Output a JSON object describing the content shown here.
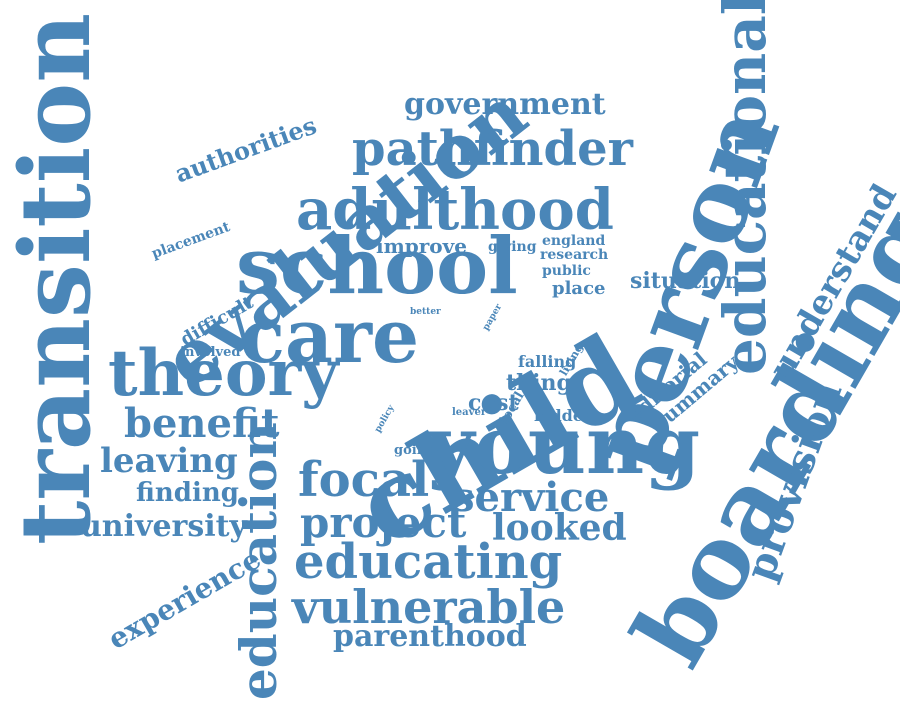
{
  "color": "#4a86b8",
  "words": [
    {
      "text": "transition",
      "rot": -90
    },
    {
      "text": "evaluation",
      "rot": -38
    },
    {
      "text": "child",
      "rot": -30
    },
    {
      "text": "person",
      "rot": -70
    },
    {
      "text": "boarding",
      "rot": -60
    },
    {
      "text": "educational",
      "rot": -90
    },
    {
      "text": "young",
      "rot": 0
    },
    {
      "text": "school",
      "rot": 0
    },
    {
      "text": "care",
      "rot": 0
    },
    {
      "text": "theory",
      "rot": 0
    },
    {
      "text": "adulthood",
      "rot": 0
    },
    {
      "text": "pathfinder",
      "rot": 0
    },
    {
      "text": "education",
      "rot": -90
    },
    {
      "text": "educating",
      "rot": 0
    },
    {
      "text": "vulnerable",
      "rot": 0
    },
    {
      "text": "focal",
      "rot": 0
    },
    {
      "text": "project",
      "rot": 0
    },
    {
      "text": "service",
      "rot": 0
    },
    {
      "text": "benefit",
      "rot": 0
    },
    {
      "text": "looked",
      "rot": 0
    },
    {
      "text": "provision",
      "rot": -70
    },
    {
      "text": "understand",
      "rot": -60
    },
    {
      "text": "government",
      "rot": 0
    },
    {
      "text": "leaving",
      "rot": 0
    },
    {
      "text": "university",
      "rot": 0
    },
    {
      "text": "parenthood",
      "rot": 0
    },
    {
      "text": "experience",
      "rot": -30
    },
    {
      "text": "authorities",
      "rot": -20
    },
    {
      "text": "finding",
      "rot": 0
    },
    {
      "text": "summary",
      "rot": -40
    },
    {
      "text": "editorial",
      "rot": -40
    },
    {
      "text": "situation",
      "rot": 0
    },
    {
      "text": "thing",
      "rot": 0
    },
    {
      "text": "cost",
      "rot": 0
    },
    {
      "text": "improve",
      "rot": 0
    },
    {
      "text": "difficult",
      "rot": -30
    },
    {
      "text": "placement",
      "rot": -20
    },
    {
      "text": "place",
      "rot": 0
    },
    {
      "text": "public",
      "rot": 0
    },
    {
      "text": "giving",
      "rot": 0
    },
    {
      "text": "research",
      "rot": 0
    },
    {
      "text": "england",
      "rot": 0
    },
    {
      "text": "falling",
      "rot": 0
    },
    {
      "text": "ladder",
      "rot": 0
    },
    {
      "text": "involved",
      "rot": 0
    },
    {
      "text": "going",
      "rot": 0
    },
    {
      "text": "local",
      "rot": -60
    },
    {
      "text": "living",
      "rot": -60
    },
    {
      "text": "leaver",
      "rot": 0
    },
    {
      "text": "policy",
      "rot": -60
    },
    {
      "text": "better",
      "rot": 0
    },
    {
      "text": "paper",
      "rot": -60
    }
  ]
}
